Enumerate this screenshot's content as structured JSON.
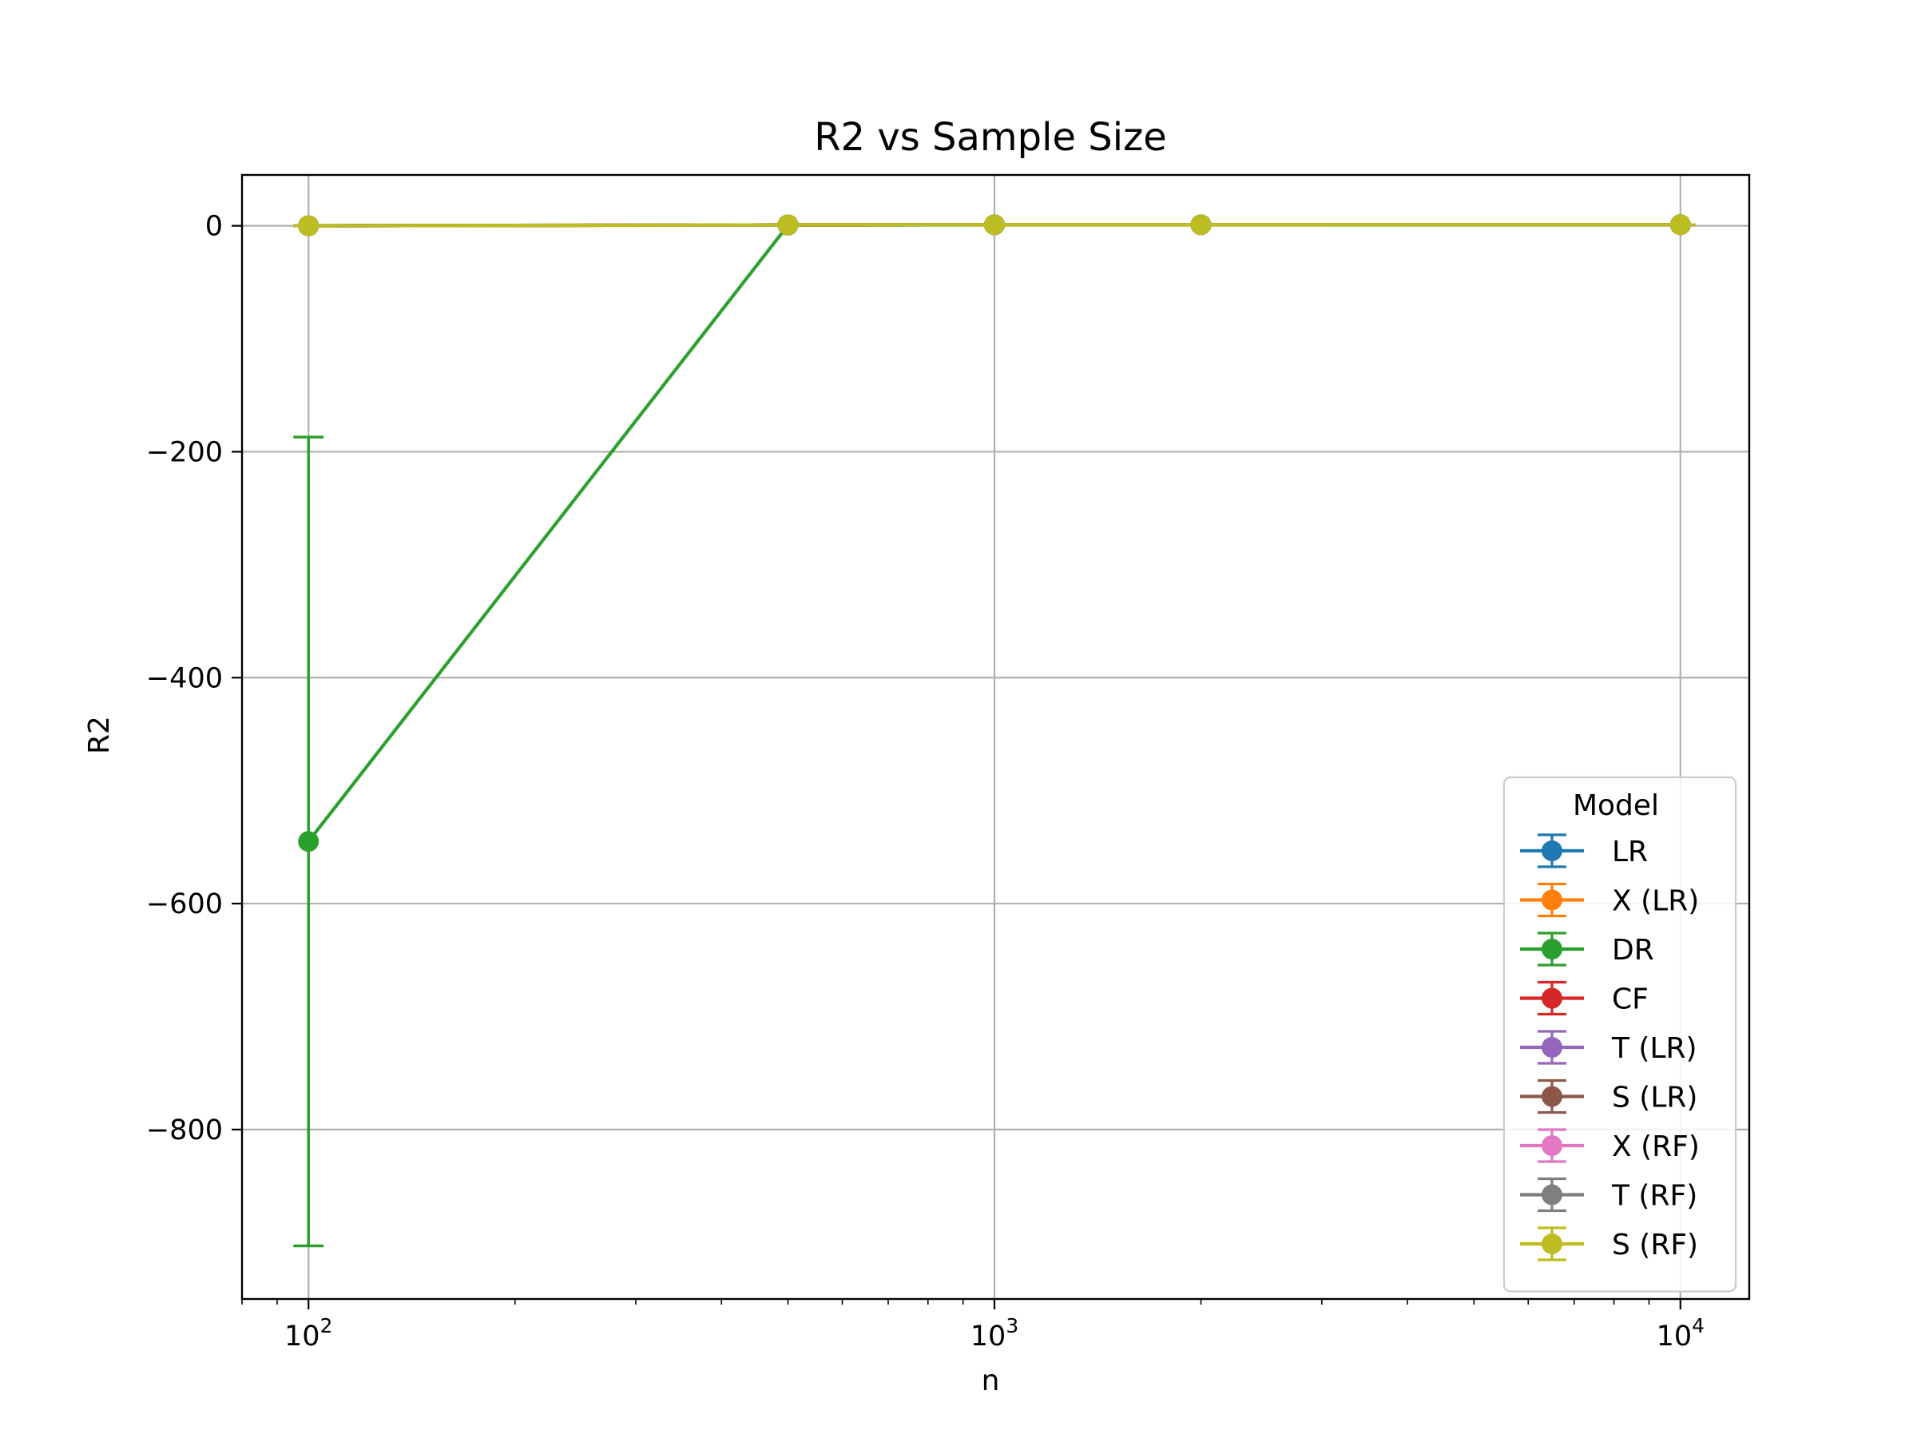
{
  "chart_data": {
    "type": "line",
    "title": "R2 vs Sample Size",
    "xlabel": "n",
    "ylabel": "R2",
    "x_scale": "log",
    "xlim": [
      80,
      12600
    ],
    "ylim": [
      -950,
      45
    ],
    "x_ticks": [
      {
        "value": 100,
        "base": "10",
        "exp": "2"
      },
      {
        "value": 1000,
        "base": "10",
        "exp": "3"
      },
      {
        "value": 10000,
        "base": "10",
        "exp": "4"
      }
    ],
    "y_ticks": [
      {
        "value": 0,
        "label": "0"
      },
      {
        "value": -200,
        "label": "−200"
      },
      {
        "value": -400,
        "label": "−400"
      },
      {
        "value": -600,
        "label": "−600"
      },
      {
        "value": -800,
        "label": "−800"
      }
    ],
    "grid": true,
    "legend": {
      "title": "Model",
      "position": "lower-right"
    },
    "x": [
      100,
      500,
      1000,
      2000,
      10000
    ],
    "series": [
      {
        "name": "LR",
        "color": "#1f77b4",
        "values": [
          0,
          0.8,
          0.9,
          0.9,
          0.95
        ],
        "errors": [
          0,
          0,
          0,
          0,
          0
        ]
      },
      {
        "name": "X (LR)",
        "color": "#ff7f0e",
        "values": [
          0,
          0.8,
          0.9,
          0.9,
          0.95
        ],
        "errors": [
          0,
          0,
          0,
          0,
          0
        ]
      },
      {
        "name": "DR",
        "color": "#2ca02c",
        "values": [
          -545,
          0.5,
          0.9,
          0.9,
          0.95
        ],
        "errors": [
          358,
          0,
          0,
          0,
          0
        ]
      },
      {
        "name": "CF",
        "color": "#d62728",
        "values": [
          0,
          0.8,
          0.9,
          0.9,
          0.95
        ],
        "errors": [
          0,
          0,
          0,
          0,
          0
        ]
      },
      {
        "name": "T (LR)",
        "color": "#9467bd",
        "values": [
          0,
          0.8,
          0.9,
          0.9,
          0.95
        ],
        "errors": [
          0,
          0,
          0,
          0,
          0
        ]
      },
      {
        "name": "S (LR)",
        "color": "#8c564b",
        "values": [
          0,
          0.8,
          0.9,
          0.9,
          0.95
        ],
        "errors": [
          0,
          0,
          0,
          0,
          0
        ]
      },
      {
        "name": "X (RF)",
        "color": "#e377c2",
        "values": [
          0,
          0.8,
          0.9,
          0.9,
          0.95
        ],
        "errors": [
          0,
          0,
          0,
          0,
          0
        ]
      },
      {
        "name": "T (RF)",
        "color": "#7f7f7f",
        "values": [
          0,
          0.8,
          0.9,
          0.9,
          0.95
        ],
        "errors": [
          0,
          0,
          0,
          0,
          0
        ]
      },
      {
        "name": "S (RF)",
        "color": "#bcbd22",
        "values": [
          0,
          0.8,
          0.9,
          0.9,
          0.95
        ],
        "errors": [
          0,
          0,
          0,
          0,
          0
        ]
      }
    ]
  }
}
